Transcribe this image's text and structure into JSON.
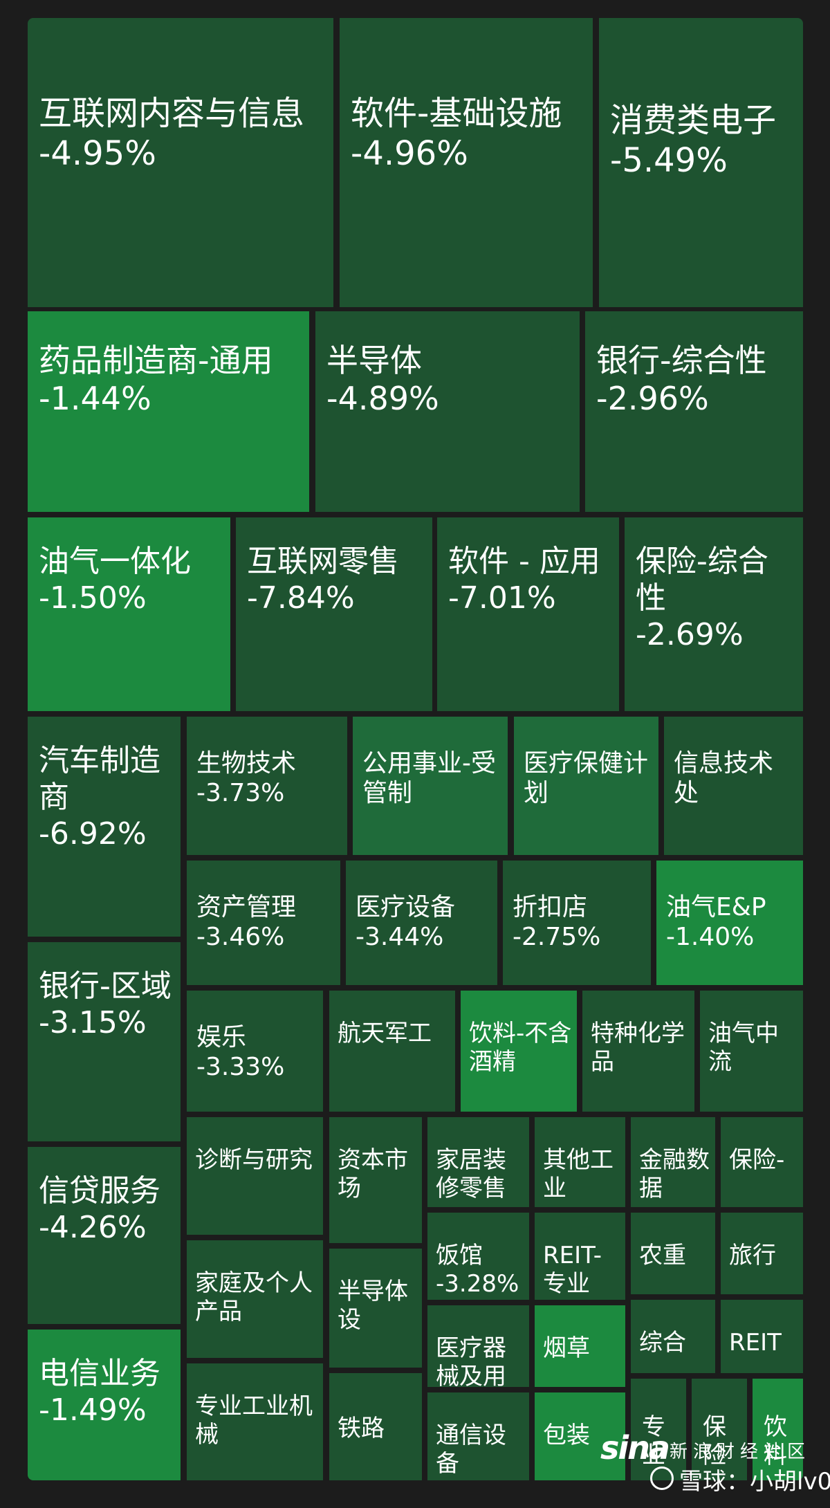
{
  "chart_data": {
    "type": "treemap",
    "colors": {
      "dark": "#1e5330",
      "mid": "#1f6b3a",
      "bright": "#1c8a3f",
      "background": "#1c1c1c"
    },
    "tiles": [
      {
        "label": "互联网内容与信息",
        "change": "-4.95%"
      },
      {
        "label": "软件-基础设施",
        "change": "-4.96%"
      },
      {
        "label": "消费类电子",
        "change": "-5.49%"
      },
      {
        "label": "药品制造商-通用",
        "change": "-1.44%"
      },
      {
        "label": "半导体",
        "change": "-4.89%"
      },
      {
        "label": "银行-综合性",
        "change": "-2.96%"
      },
      {
        "label": "油气一体化",
        "change": "-1.50%"
      },
      {
        "label": "互联网零售",
        "change": "-7.84%"
      },
      {
        "label": "软件 - 应用",
        "change": "-7.01%"
      },
      {
        "label": "保险-综合性",
        "change": "-2.69%"
      },
      {
        "label": "汽车制造商",
        "change": "-6.92%"
      },
      {
        "label": "银行-区域",
        "change": "-3.15%"
      },
      {
        "label": "信贷服务",
        "change": "-4.26%"
      },
      {
        "label": "电信业务",
        "change": "-1.49%"
      },
      {
        "label": "生物技术",
        "change": "-3.73%"
      },
      {
        "label": "公用事业-受管制",
        "change": ""
      },
      {
        "label": "医疗保健计划",
        "change": ""
      },
      {
        "label": "信息技术处",
        "change": ""
      },
      {
        "label": "资产管理",
        "change": "-3.46%"
      },
      {
        "label": "医疗设备",
        "change": "-3.44%"
      },
      {
        "label": "折扣店",
        "change": "-2.75%"
      },
      {
        "label": "油气E&P",
        "change": "-1.40%"
      },
      {
        "label": "娱乐",
        "change": "-3.33%"
      },
      {
        "label": "航天军工",
        "change": ""
      },
      {
        "label": "饮料-不含酒精",
        "change": ""
      },
      {
        "label": "特种化学品",
        "change": ""
      },
      {
        "label": "油气中流",
        "change": ""
      },
      {
        "label": "诊断与研究",
        "change": ""
      },
      {
        "label": "家庭及个人产品",
        "change": ""
      },
      {
        "label": "专业工业机械",
        "change": ""
      },
      {
        "label": "资本市场",
        "change": ""
      },
      {
        "label": "半导体设",
        "change": ""
      },
      {
        "label": "铁路",
        "change": ""
      },
      {
        "label": "家居装修零售",
        "change": ""
      },
      {
        "label": "饭馆",
        "change": "-3.28%"
      },
      {
        "label": "医疗器械及用",
        "change": ""
      },
      {
        "label": "通信设备",
        "change": ""
      },
      {
        "label": "其他工业",
        "change": ""
      },
      {
        "label": "REIT-专业",
        "change": ""
      },
      {
        "label": "烟草",
        "change": ""
      },
      {
        "label": "包装",
        "change": ""
      },
      {
        "label": "金融数据",
        "change": ""
      },
      {
        "label": "保险-",
        "change": ""
      },
      {
        "label": "农重",
        "change": ""
      },
      {
        "label": "旅行",
        "change": ""
      },
      {
        "label": "综合",
        "change": ""
      },
      {
        "label": "REIT",
        "change": ""
      },
      {
        "label": "专业",
        "change": ""
      },
      {
        "label": "保险",
        "change": ""
      },
      {
        "label": "饮料",
        "change": ""
      }
    ]
  },
  "watermark": {
    "logo": "sina",
    "site": "新浪财经社区",
    "user": "雪球：小胡lv0"
  }
}
